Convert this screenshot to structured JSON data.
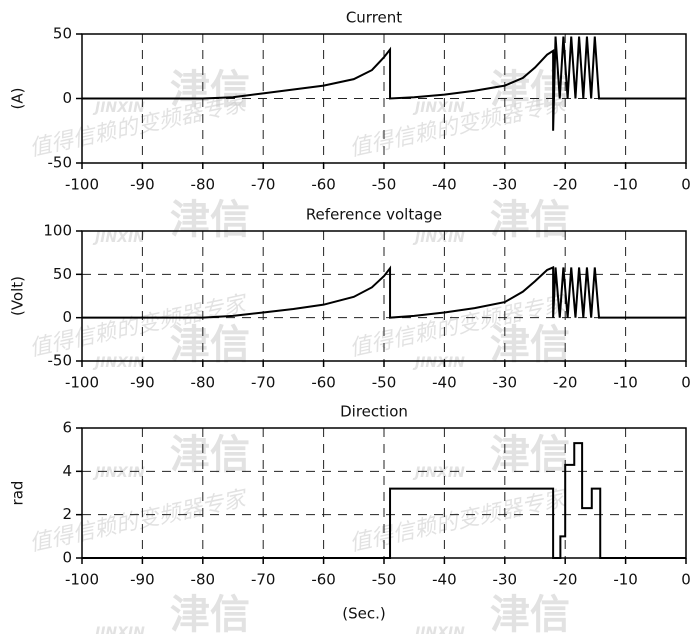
{
  "watermark": {
    "slogan": "值得信赖的变频器专家",
    "logo": "津信",
    "brand": "JINXIN"
  },
  "chart_data": [
    {
      "type": "line",
      "title": "Current",
      "ylabel": "(A)",
      "xlim": [
        -100,
        0
      ],
      "ylim": [
        -50,
        50
      ],
      "xticks": [
        -100,
        -90,
        -80,
        -70,
        -60,
        -50,
        -40,
        -30,
        -20,
        -10,
        0
      ],
      "yticks": [
        -50,
        0,
        50
      ],
      "grid": true,
      "series": [
        {
          "color": "#000000",
          "x": [
            -100,
            -80,
            -75,
            -70,
            -65,
            -60,
            -55,
            -52,
            -50,
            -49,
            -49,
            -45,
            -40,
            -35,
            -30,
            -27,
            -25,
            -23,
            -22,
            -22,
            -21.6,
            -20.9,
            -20.3,
            -19.6,
            -19,
            -18.3,
            -17.7,
            -17,
            -16.4,
            -15.7,
            -15.1,
            -14.4,
            0
          ],
          "values": [
            0,
            0,
            1,
            4,
            7,
            10,
            15,
            22,
            32,
            38,
            0,
            1,
            3,
            6,
            10,
            16,
            24,
            34,
            37,
            -25,
            48,
            0,
            48,
            0,
            48,
            0,
            48,
            0,
            48,
            0,
            48,
            0,
            0
          ]
        }
      ]
    },
    {
      "type": "line",
      "title": "Reference voltage",
      "ylabel": "(Volt)",
      "xlim": [
        -100,
        0
      ],
      "ylim": [
        -50,
        100
      ],
      "xticks": [
        -100,
        -90,
        -80,
        -70,
        -60,
        -50,
        -40,
        -30,
        -20,
        -10,
        0
      ],
      "yticks": [
        -50,
        0,
        50,
        100
      ],
      "grid": true,
      "series": [
        {
          "color": "#000000",
          "x": [
            -100,
            -80,
            -75,
            -70,
            -65,
            -60,
            -55,
            -52,
            -50,
            -49,
            -49,
            -45,
            -40,
            -35,
            -30,
            -27,
            -25,
            -23,
            -22,
            -22,
            -21.6,
            -20.9,
            -20.3,
            -19.6,
            -19,
            -18.3,
            -17.7,
            -17,
            -16.4,
            -15.7,
            -15.1,
            -14.4,
            0
          ],
          "values": [
            0,
            0,
            2,
            6,
            10,
            15,
            24,
            35,
            48,
            57,
            0,
            2,
            6,
            11,
            18,
            30,
            42,
            55,
            58,
            0,
            58,
            0,
            58,
            0,
            58,
            0,
            58,
            0,
            58,
            0,
            58,
            0,
            0
          ]
        }
      ]
    },
    {
      "type": "line",
      "title": "Direction",
      "ylabel": "rad",
      "xlabel": "(Sec.)",
      "xlim": [
        -100,
        0
      ],
      "ylim": [
        0,
        6
      ],
      "xticks": [
        -100,
        -90,
        -80,
        -70,
        -60,
        -50,
        -40,
        -30,
        -20,
        -10,
        0
      ],
      "yticks": [
        0,
        2,
        4,
        6
      ],
      "grid": true,
      "series": [
        {
          "color": "#000000",
          "x": [
            -100,
            -49,
            -49,
            -22,
            -22,
            -20.8,
            -20.8,
            -20,
            -20,
            -18.5,
            -18.5,
            -17.2,
            -17.2,
            -15.6,
            -15.6,
            -14.2,
            -14.2,
            0
          ],
          "values": [
            0,
            0,
            3.2,
            3.2,
            0,
            0,
            1,
            1,
            4.3,
            4.3,
            5.3,
            5.3,
            2.3,
            2.3,
            3.2,
            3.2,
            0,
            0
          ]
        }
      ]
    }
  ]
}
